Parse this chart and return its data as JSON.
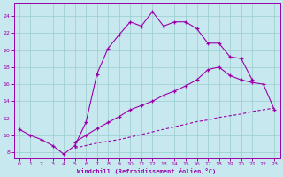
{
  "background_color": "#c8e8f0",
  "line_color": "#9900aa",
  "grid_color": "#99cccc",
  "ylim": [
    7.3,
    25.5
  ],
  "xlim": [
    -0.5,
    23.5
  ],
  "yticks": [
    8,
    10,
    12,
    14,
    16,
    18,
    20,
    22,
    24
  ],
  "xticks": [
    0,
    1,
    2,
    3,
    4,
    5,
    6,
    7,
    8,
    9,
    10,
    11,
    12,
    13,
    14,
    15,
    16,
    17,
    18,
    19,
    20,
    21,
    22,
    23
  ],
  "xlabel": "Windchill (Refroidissement éolien,°C)",
  "curve1_x": [
    0,
    1,
    2,
    3,
    4,
    5,
    6,
    7,
    8,
    9,
    10,
    11,
    12,
    13,
    14,
    15,
    16,
    17,
    18,
    19,
    20,
    21
  ],
  "curve1_y": [
    10.7,
    10.0,
    9.5,
    8.8,
    7.8,
    8.8,
    11.5,
    17.2,
    20.2,
    21.8,
    23.3,
    22.8,
    24.5,
    22.8,
    23.3,
    23.3,
    22.5,
    20.8,
    20.8,
    19.2,
    19.0,
    16.5
  ],
  "curve2_x": [
    5,
    6,
    7,
    8,
    9,
    10,
    11,
    12,
    13,
    14,
    15,
    16,
    17,
    18,
    19,
    20,
    21,
    22,
    23
  ],
  "curve2_y": [
    9.2,
    10.0,
    10.8,
    11.5,
    12.2,
    13.0,
    13.5,
    14.0,
    14.7,
    15.2,
    15.8,
    16.5,
    17.7,
    18.0,
    17.0,
    16.5,
    16.2,
    16.0,
    13.0
  ],
  "curve3_x": [
    5,
    6,
    7,
    8,
    9,
    10,
    11,
    12,
    13,
    14,
    15,
    16,
    17,
    18,
    19,
    20,
    21,
    22,
    23
  ],
  "curve3_y": [
    8.5,
    8.8,
    9.1,
    9.3,
    9.5,
    9.8,
    10.1,
    10.4,
    10.7,
    11.0,
    11.3,
    11.6,
    11.8,
    12.1,
    12.3,
    12.5,
    12.8,
    13.0,
    13.2
  ]
}
